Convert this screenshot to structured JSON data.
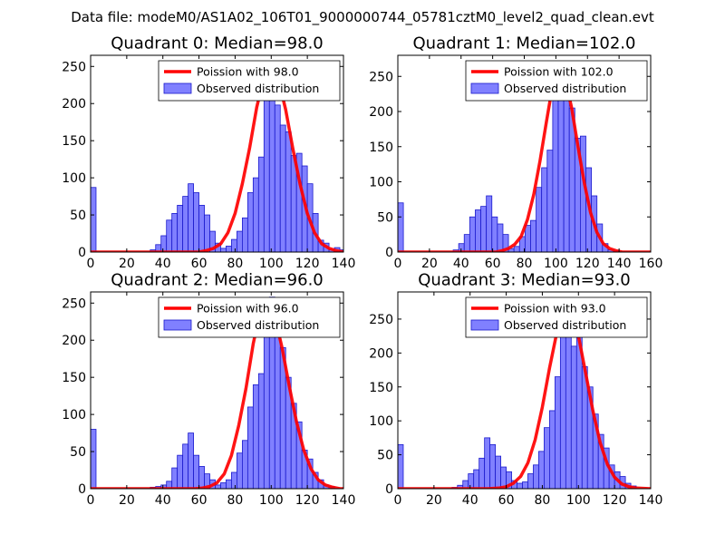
{
  "figure_title": "Data file: modeM0/AS1A02_106T01_9000000744_05781cztM0_level2_quad_clean.evt",
  "colors": {
    "bar_fill": "#8080ff",
    "bar_edge": "#1a1acc",
    "curve": "#ff0000",
    "axes": "#000000"
  },
  "chart_data": [
    {
      "type": "histogram+line",
      "title": "Quadrant 0: Median=98.0",
      "xlim": [
        0,
        140
      ],
      "ylim": [
        0,
        265
      ],
      "xticks": [
        0,
        20,
        40,
        60,
        80,
        100,
        120,
        140
      ],
      "yticks": [
        0,
        50,
        100,
        150,
        200,
        250
      ],
      "bin_width": 3,
      "hist": [
        {
          "x": 0,
          "y": 87
        },
        {
          "x": 33,
          "y": 3
        },
        {
          "x": 36,
          "y": 10
        },
        {
          "x": 39,
          "y": 22
        },
        {
          "x": 42,
          "y": 43
        },
        {
          "x": 45,
          "y": 52
        },
        {
          "x": 48,
          "y": 63
        },
        {
          "x": 51,
          "y": 75
        },
        {
          "x": 54,
          "y": 92
        },
        {
          "x": 57,
          "y": 80
        },
        {
          "x": 60,
          "y": 63
        },
        {
          "x": 63,
          "y": 50
        },
        {
          "x": 66,
          "y": 28
        },
        {
          "x": 69,
          "y": 12
        },
        {
          "x": 72,
          "y": 5
        },
        {
          "x": 75,
          "y": 8
        },
        {
          "x": 78,
          "y": 17
        },
        {
          "x": 81,
          "y": 28
        },
        {
          "x": 84,
          "y": 46
        },
        {
          "x": 87,
          "y": 80
        },
        {
          "x": 90,
          "y": 100
        },
        {
          "x": 93,
          "y": 128
        },
        {
          "x": 96,
          "y": 235
        },
        {
          "x": 99,
          "y": 248
        },
        {
          "x": 102,
          "y": 198
        },
        {
          "x": 105,
          "y": 171
        },
        {
          "x": 108,
          "y": 162
        },
        {
          "x": 111,
          "y": 130
        },
        {
          "x": 114,
          "y": 133
        },
        {
          "x": 117,
          "y": 116
        },
        {
          "x": 120,
          "y": 92
        },
        {
          "x": 123,
          "y": 52
        },
        {
          "x": 126,
          "y": 16
        },
        {
          "x": 129,
          "y": 12
        },
        {
          "x": 132,
          "y": 3
        },
        {
          "x": 135,
          "y": 6
        },
        {
          "x": 138,
          "y": 3
        }
      ],
      "curve": {
        "x": [
          0,
          50,
          60,
          64,
          68,
          72,
          76,
          80,
          84,
          88,
          92,
          96,
          100,
          104,
          108,
          112,
          116,
          120,
          124,
          128,
          132,
          136,
          140
        ],
        "y": [
          0,
          0,
          0,
          2,
          5,
          11,
          26,
          52,
          92,
          140,
          195,
          236,
          250,
          232,
          192,
          139,
          91,
          52,
          26,
          11,
          5,
          2,
          0
        ]
      },
      "legend": {
        "line_label": "Poission with 98.0",
        "hist_label": "Observed distribution",
        "loc": "upper right"
      }
    },
    {
      "type": "histogram+line",
      "title": "Quadrant 1: Median=102.0",
      "xlim": [
        0,
        160
      ],
      "ylim": [
        0,
        280
      ],
      "xticks": [
        0,
        20,
        40,
        60,
        80,
        100,
        120,
        140,
        160
      ],
      "yticks": [
        0,
        50,
        100,
        150,
        200,
        250
      ],
      "bin_width": 3.5,
      "hist": [
        {
          "x": 0,
          "y": 70
        },
        {
          "x": 35,
          "y": 3
        },
        {
          "x": 38.5,
          "y": 12
        },
        {
          "x": 42,
          "y": 25
        },
        {
          "x": 45.5,
          "y": 50
        },
        {
          "x": 49,
          "y": 60
        },
        {
          "x": 52.5,
          "y": 65
        },
        {
          "x": 56,
          "y": 80
        },
        {
          "x": 59.5,
          "y": 50
        },
        {
          "x": 63,
          "y": 40
        },
        {
          "x": 66.5,
          "y": 25
        },
        {
          "x": 70,
          "y": 5
        },
        {
          "x": 73.5,
          "y": 8
        },
        {
          "x": 77,
          "y": 22
        },
        {
          "x": 80.5,
          "y": 38
        },
        {
          "x": 84,
          "y": 45
        },
        {
          "x": 87.5,
          "y": 92
        },
        {
          "x": 91,
          "y": 120
        },
        {
          "x": 94.5,
          "y": 145
        },
        {
          "x": 98,
          "y": 240
        },
        {
          "x": 101.5,
          "y": 270
        },
        {
          "x": 105,
          "y": 245
        },
        {
          "x": 108.5,
          "y": 205
        },
        {
          "x": 112,
          "y": 162
        },
        {
          "x": 115.5,
          "y": 165
        },
        {
          "x": 119,
          "y": 120
        },
        {
          "x": 122.5,
          "y": 80
        },
        {
          "x": 126,
          "y": 40
        },
        {
          "x": 129.5,
          "y": 12
        },
        {
          "x": 133,
          "y": 3
        },
        {
          "x": 136.5,
          "y": 2
        }
      ],
      "curve": {
        "x": [
          0,
          55,
          62,
          66,
          70,
          74,
          78,
          82,
          86,
          90,
          94,
          98,
          102,
          106,
          110,
          114,
          118,
          122,
          126,
          130,
          134,
          138,
          142,
          160
        ],
        "y": [
          0,
          0,
          0,
          2,
          5,
          11,
          22,
          46,
          82,
          130,
          185,
          238,
          262,
          246,
          205,
          150,
          98,
          56,
          28,
          12,
          5,
          2,
          0,
          0
        ]
      },
      "legend": {
        "line_label": "Poission with 102.0",
        "hist_label": "Observed distribution",
        "loc": "upper right"
      }
    },
    {
      "type": "histogram+line",
      "title": "Quadrant 2: Median=96.0",
      "xlim": [
        0,
        140
      ],
      "ylim": [
        0,
        265
      ],
      "xticks": [
        0,
        20,
        40,
        60,
        80,
        100,
        120,
        140
      ],
      "yticks": [
        0,
        50,
        100,
        150,
        200,
        250
      ],
      "bin_width": 3,
      "hist": [
        {
          "x": 0,
          "y": 80
        },
        {
          "x": 33,
          "y": 2
        },
        {
          "x": 36,
          "y": 3
        },
        {
          "x": 39,
          "y": 5
        },
        {
          "x": 42,
          "y": 10
        },
        {
          "x": 45,
          "y": 28
        },
        {
          "x": 48,
          "y": 45
        },
        {
          "x": 51,
          "y": 60
        },
        {
          "x": 54,
          "y": 75
        },
        {
          "x": 57,
          "y": 45
        },
        {
          "x": 60,
          "y": 30
        },
        {
          "x": 63,
          "y": 20
        },
        {
          "x": 66,
          "y": 12
        },
        {
          "x": 69,
          "y": 5
        },
        {
          "x": 72,
          "y": 8
        },
        {
          "x": 75,
          "y": 12
        },
        {
          "x": 78,
          "y": 22
        },
        {
          "x": 81,
          "y": 48
        },
        {
          "x": 84,
          "y": 65
        },
        {
          "x": 87,
          "y": 110
        },
        {
          "x": 90,
          "y": 140
        },
        {
          "x": 93,
          "y": 155
        },
        {
          "x": 96,
          "y": 225
        },
        {
          "x": 99,
          "y": 258
        },
        {
          "x": 102,
          "y": 232
        },
        {
          "x": 105,
          "y": 190
        },
        {
          "x": 108,
          "y": 150
        },
        {
          "x": 111,
          "y": 115
        },
        {
          "x": 114,
          "y": 90
        },
        {
          "x": 117,
          "y": 52
        },
        {
          "x": 120,
          "y": 40
        },
        {
          "x": 123,
          "y": 22
        },
        {
          "x": 126,
          "y": 12
        },
        {
          "x": 129,
          "y": 5
        },
        {
          "x": 132,
          "y": 3
        }
      ],
      "curve": {
        "x": [
          0,
          50,
          58,
          62,
          66,
          70,
          74,
          78,
          82,
          86,
          90,
          94,
          98,
          102,
          106,
          110,
          114,
          118,
          122,
          126,
          130,
          134,
          138,
          140
        ],
        "y": [
          0,
          0,
          0,
          1,
          3,
          8,
          20,
          45,
          85,
          135,
          195,
          240,
          252,
          232,
          190,
          138,
          90,
          52,
          27,
          12,
          5,
          2,
          0,
          0
        ]
      },
      "legend": {
        "line_label": "Poission with 96.0",
        "hist_label": "Observed distribution",
        "loc": "upper right"
      }
    },
    {
      "type": "histogram+line",
      "title": "Quadrant 3: Median=93.0",
      "xlim": [
        0,
        140
      ],
      "ylim": [
        0,
        290
      ],
      "xticks": [
        0,
        20,
        40,
        60,
        80,
        100,
        120,
        140
      ],
      "yticks": [
        0,
        50,
        100,
        150,
        200,
        250
      ],
      "bin_width": 3,
      "hist": [
        {
          "x": 0,
          "y": 65
        },
        {
          "x": 30,
          "y": 2
        },
        {
          "x": 33,
          "y": 5
        },
        {
          "x": 36,
          "y": 12
        },
        {
          "x": 39,
          "y": 22
        },
        {
          "x": 42,
          "y": 28
        },
        {
          "x": 45,
          "y": 45
        },
        {
          "x": 48,
          "y": 75
        },
        {
          "x": 51,
          "y": 65
        },
        {
          "x": 54,
          "y": 48
        },
        {
          "x": 57,
          "y": 32
        },
        {
          "x": 60,
          "y": 25
        },
        {
          "x": 63,
          "y": 12
        },
        {
          "x": 66,
          "y": 8
        },
        {
          "x": 69,
          "y": 10
        },
        {
          "x": 72,
          "y": 22
        },
        {
          "x": 75,
          "y": 35
        },
        {
          "x": 78,
          "y": 55
        },
        {
          "x": 81,
          "y": 90
        },
        {
          "x": 84,
          "y": 115
        },
        {
          "x": 87,
          "y": 165
        },
        {
          "x": 90,
          "y": 230
        },
        {
          "x": 93,
          "y": 235
        },
        {
          "x": 96,
          "y": 210
        },
        {
          "x": 99,
          "y": 230
        },
        {
          "x": 102,
          "y": 180
        },
        {
          "x": 105,
          "y": 150
        },
        {
          "x": 108,
          "y": 110
        },
        {
          "x": 111,
          "y": 80
        },
        {
          "x": 114,
          "y": 60
        },
        {
          "x": 117,
          "y": 35
        },
        {
          "x": 120,
          "y": 25
        },
        {
          "x": 123,
          "y": 18
        },
        {
          "x": 126,
          "y": 8
        },
        {
          "x": 129,
          "y": 4
        }
      ],
      "curve": {
        "x": [
          0,
          50,
          56,
          60,
          64,
          68,
          72,
          76,
          80,
          84,
          88,
          92,
          96,
          100,
          104,
          108,
          112,
          116,
          120,
          124,
          128,
          132,
          140
        ],
        "y": [
          0,
          0,
          1,
          3,
          8,
          18,
          38,
          72,
          120,
          178,
          230,
          268,
          262,
          225,
          170,
          115,
          68,
          36,
          17,
          7,
          3,
          1,
          0
        ]
      },
      "legend": {
        "line_label": "Poission with 93.0",
        "hist_label": "Observed distribution",
        "loc": "upper right"
      }
    }
  ]
}
